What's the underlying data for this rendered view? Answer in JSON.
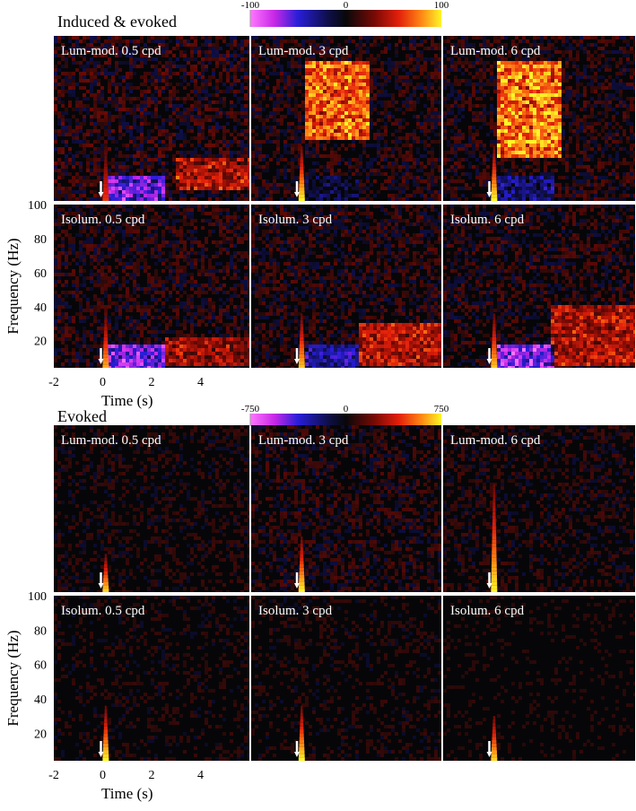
{
  "chart_data": [
    {
      "type": "heatmap",
      "title": "Induced & evoked",
      "colorbar": {
        "min": -100,
        "mid": 0,
        "max": 100,
        "ticks": [
          "-100",
          "0",
          "100"
        ]
      },
      "xlabel": "Time (s)",
      "ylabel": "Frequency (Hz)",
      "xlim": [
        -2,
        6
      ],
      "ylim": [
        4,
        100
      ],
      "xticks": [
        "-2",
        "0",
        "2",
        "4"
      ],
      "yticks": [
        "20",
        "40",
        "60",
        "80",
        "100"
      ],
      "stimulus_marker_time": 0,
      "panels": [
        {
          "label": "Lum-mod. 0.5 cpd",
          "sustained_band_hz": [
            10,
            30
          ],
          "sustained_window_s": [
            3.0,
            6.0
          ],
          "onset_peak": 60,
          "early_suppression": -70,
          "sustained_level": 45,
          "broadband_level": 35
        },
        {
          "label": "Lum-mod. 3 cpd",
          "sustained_band_hz": [
            40,
            85
          ],
          "sustained_window_s": [
            0.2,
            3.0
          ],
          "onset_peak": 100,
          "early_suppression": -20,
          "sustained_level": 75,
          "broadband_level": 30
        },
        {
          "label": "Lum-mod. 6 cpd",
          "sustained_band_hz": [
            30,
            85
          ],
          "sustained_window_s": [
            0.2,
            3.0
          ],
          "onset_peak": 100,
          "early_suppression": -35,
          "sustained_level": 85,
          "broadband_level": 30
        },
        {
          "label": "Isolum. 0.5 cpd",
          "sustained_band_hz": [
            6,
            22
          ],
          "sustained_window_s": [
            2.5,
            6.0
          ],
          "onset_peak": 85,
          "early_suppression": -75,
          "sustained_level": 40,
          "broadband_level": 30
        },
        {
          "label": "Isolum. 3 cpd",
          "sustained_band_hz": [
            6,
            30
          ],
          "sustained_window_s": [
            2.5,
            6.0
          ],
          "onset_peak": 90,
          "early_suppression": -45,
          "sustained_level": 45,
          "broadband_level": 30
        },
        {
          "label": "Isolum. 6 cpd",
          "sustained_band_hz": [
            6,
            40
          ],
          "sustained_window_s": [
            2.5,
            6.0
          ],
          "onset_peak": 90,
          "early_suppression": -80,
          "sustained_level": 45,
          "broadband_level": 30
        }
      ]
    },
    {
      "type": "heatmap",
      "title": "Evoked",
      "colorbar": {
        "min": -750,
        "mid": 0,
        "max": 750,
        "ticks": [
          "-750",
          "0",
          "750"
        ]
      },
      "xlabel": "Time (s)",
      "ylabel": "Frequency (Hz)",
      "xlim": [
        -2,
        6
      ],
      "ylim": [
        4,
        100
      ],
      "xticks": [
        "-2",
        "0",
        "2",
        "4"
      ],
      "yticks": [
        "20",
        "40",
        "60",
        "80",
        "100"
      ],
      "stimulus_marker_time": 0,
      "panels": [
        {
          "label": "Lum-mod. 0.5 cpd",
          "onset_peak": 700,
          "onset_max_freq_hz": 25,
          "broadband_level": 150
        },
        {
          "label": "Lum-mod. 3 cpd",
          "onset_peak": 750,
          "onset_max_freq_hz": 35,
          "broadband_level": 200
        },
        {
          "label": "Lum-mod. 6 cpd",
          "onset_peak": 750,
          "onset_max_freq_hz": 65,
          "broadband_level": 170
        },
        {
          "label": "Isolum. 0.5 cpd",
          "onset_peak": 750,
          "onset_max_freq_hz": 35,
          "broadband_level": 130
        },
        {
          "label": "Isolum. 3 cpd",
          "onset_peak": 750,
          "onset_max_freq_hz": 35,
          "broadband_level": 130
        },
        {
          "label": "Isolum. 6 cpd",
          "onset_peak": 700,
          "onset_max_freq_hz": 30,
          "broadband_level": 110
        }
      ]
    }
  ]
}
